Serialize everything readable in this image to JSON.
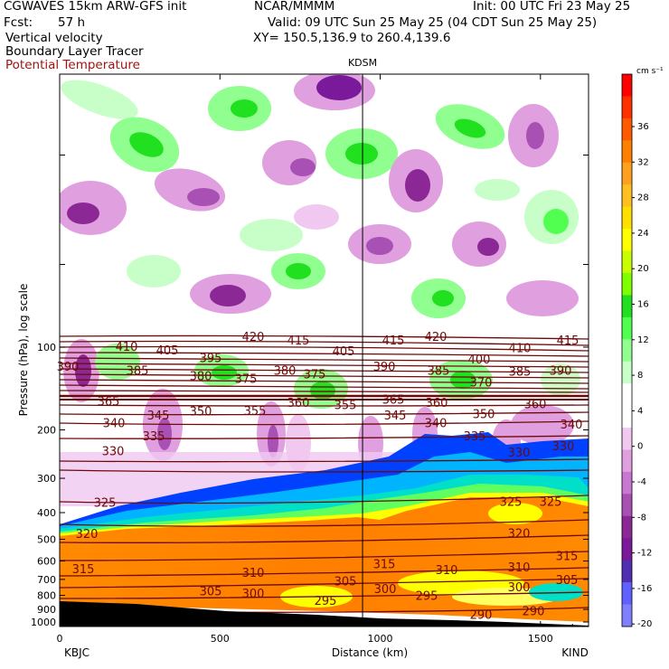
{
  "header": {
    "model": "CGWAVES 15km ARW-GFS init",
    "org": "NCAR/MMMM",
    "init": "Init: 00 UTC Fri 23 May 25",
    "fcst_label": "Fcst:",
    "fcst_value": "57 h",
    "valid": "Valid: 09 UTC Sun 25 May 25 (04 CDT Sun 25 May 25)",
    "xy": "XY= 150.5,136.9 to 260.4,139.6",
    "field1": "Vertical velocity",
    "field2": "Boundary Layer Tracer",
    "field3": "Potential Temperature"
  },
  "colors": {
    "theta_contour": "#6e0a0a",
    "header_red": "#a01414"
  },
  "chart_data": {
    "type": "heatmap",
    "station_marker": "KDSM",
    "station_marker_x": 945,
    "start_label": "KBJC",
    "end_label": "KIND",
    "xlabel": "Distance (km)",
    "ylabel": "Pressure (hPa), log scale",
    "xlim": [
      0,
      1650
    ],
    "x_ticks": [
      0,
      500,
      1000,
      1500
    ],
    "y_ticks": [
      100,
      200,
      300,
      400,
      500,
      600,
      700,
      800,
      900,
      1000
    ],
    "colorbar": {
      "unit": "cm s⁻¹",
      "ticks": [
        36,
        32,
        28,
        24,
        20,
        16,
        12,
        8,
        4,
        0,
        -4,
        -8,
        -12,
        -16,
        -20
      ],
      "colors": [
        "#ff0000",
        "#ff3000",
        "#ff5a00",
        "#ff7f00",
        "#ffa020",
        "#ffc020",
        "#ffe000",
        "#ffff00",
        "#c8ff00",
        "#80ff00",
        "#20e020",
        "#50ff50",
        "#90ff90",
        "#c8ffc8",
        "#ffffff",
        "#ffffff",
        "#f0c8f0",
        "#e0a0e0",
        "#c878d2",
        "#a850b4",
        "#8c2896",
        "#7a1a9a",
        "#5030b0",
        "#6060ff",
        "#8080ff"
      ]
    },
    "theta_labels": [
      {
        "value": "420",
        "x": 280,
        "p": 92
      },
      {
        "value": "415",
        "x": 330,
        "p": 95
      },
      {
        "value": "415",
        "x": 435,
        "p": 95
      },
      {
        "value": "420",
        "x": 482,
        "p": 92
      },
      {
        "value": "415",
        "x": 628,
        "p": 95
      },
      {
        "value": "410",
        "x": 140,
        "p": 100
      },
      {
        "value": "405",
        "x": 185,
        "p": 103
      },
      {
        "value": "395",
        "x": 233,
        "p": 110
      },
      {
        "value": "405",
        "x": 380,
        "p": 104
      },
      {
        "value": "410",
        "x": 575,
        "p": 101
      },
      {
        "value": "390",
        "x": 75,
        "p": 118
      },
      {
        "value": "385",
        "x": 152,
        "p": 122
      },
      {
        "value": "380",
        "x": 315,
        "p": 122
      },
      {
        "value": "375",
        "x": 348,
        "p": 126
      },
      {
        "value": "390",
        "x": 425,
        "p": 118
      },
      {
        "value": "400",
        "x": 530,
        "p": 111
      },
      {
        "value": "385",
        "x": 485,
        "p": 122
      },
      {
        "value": "370",
        "x": 532,
        "p": 135
      },
      {
        "value": "385",
        "x": 575,
        "p": 123
      },
      {
        "value": "390",
        "x": 620,
        "p": 122
      },
      {
        "value": "380",
        "x": 222,
        "p": 128
      },
      {
        "value": "375",
        "x": 272,
        "p": 131
      },
      {
        "value": "365",
        "x": 120,
        "p": 158
      },
      {
        "value": "360",
        "x": 330,
        "p": 160
      },
      {
        "value": "355",
        "x": 382,
        "p": 163
      },
      {
        "value": "365",
        "x": 435,
        "p": 156
      },
      {
        "value": "360",
        "x": 483,
        "p": 160
      },
      {
        "value": "360",
        "x": 592,
        "p": 162
      },
      {
        "value": "350",
        "x": 222,
        "p": 172
      },
      {
        "value": "355",
        "x": 282,
        "p": 171
      },
      {
        "value": "345",
        "x": 175,
        "p": 178
      },
      {
        "value": "345",
        "x": 437,
        "p": 178
      },
      {
        "value": "350",
        "x": 535,
        "p": 176
      },
      {
        "value": "340",
        "x": 126,
        "p": 190
      },
      {
        "value": "340",
        "x": 482,
        "p": 190
      },
      {
        "value": "340",
        "x": 632,
        "p": 192
      },
      {
        "value": "335",
        "x": 170,
        "p": 212
      },
      {
        "value": "335",
        "x": 525,
        "p": 212
      },
      {
        "value": "330",
        "x": 125,
        "p": 240
      },
      {
        "value": "330",
        "x": 574,
        "p": 243
      },
      {
        "value": "330",
        "x": 623,
        "p": 230
      },
      {
        "value": "325",
        "x": 116,
        "p": 370
      },
      {
        "value": "325",
        "x": 565,
        "p": 366
      },
      {
        "value": "325",
        "x": 609,
        "p": 366
      },
      {
        "value": "320",
        "x": 96,
        "p": 480
      },
      {
        "value": "320",
        "x": 574,
        "p": 478
      },
      {
        "value": "315",
        "x": 92,
        "p": 645
      },
      {
        "value": "315",
        "x": 425,
        "p": 618
      },
      {
        "value": "315",
        "x": 627,
        "p": 578
      },
      {
        "value": "310",
        "x": 280,
        "p": 665
      },
      {
        "value": "310",
        "x": 494,
        "p": 650
      },
      {
        "value": "310",
        "x": 574,
        "p": 635
      },
      {
        "value": "305",
        "x": 233,
        "p": 775
      },
      {
        "value": "305",
        "x": 382,
        "p": 715
      },
      {
        "value": "305",
        "x": 627,
        "p": 705
      },
      {
        "value": "300",
        "x": 280,
        "p": 790
      },
      {
        "value": "300",
        "x": 426,
        "p": 760
      },
      {
        "value": "300",
        "x": 574,
        "p": 750
      },
      {
        "value": "295",
        "x": 360,
        "p": 840
      },
      {
        "value": "295",
        "x": 472,
        "p": 805
      },
      {
        "value": "290",
        "x": 532,
        "p": 945
      },
      {
        "value": "290",
        "x": 590,
        "p": 918
      }
    ]
  }
}
